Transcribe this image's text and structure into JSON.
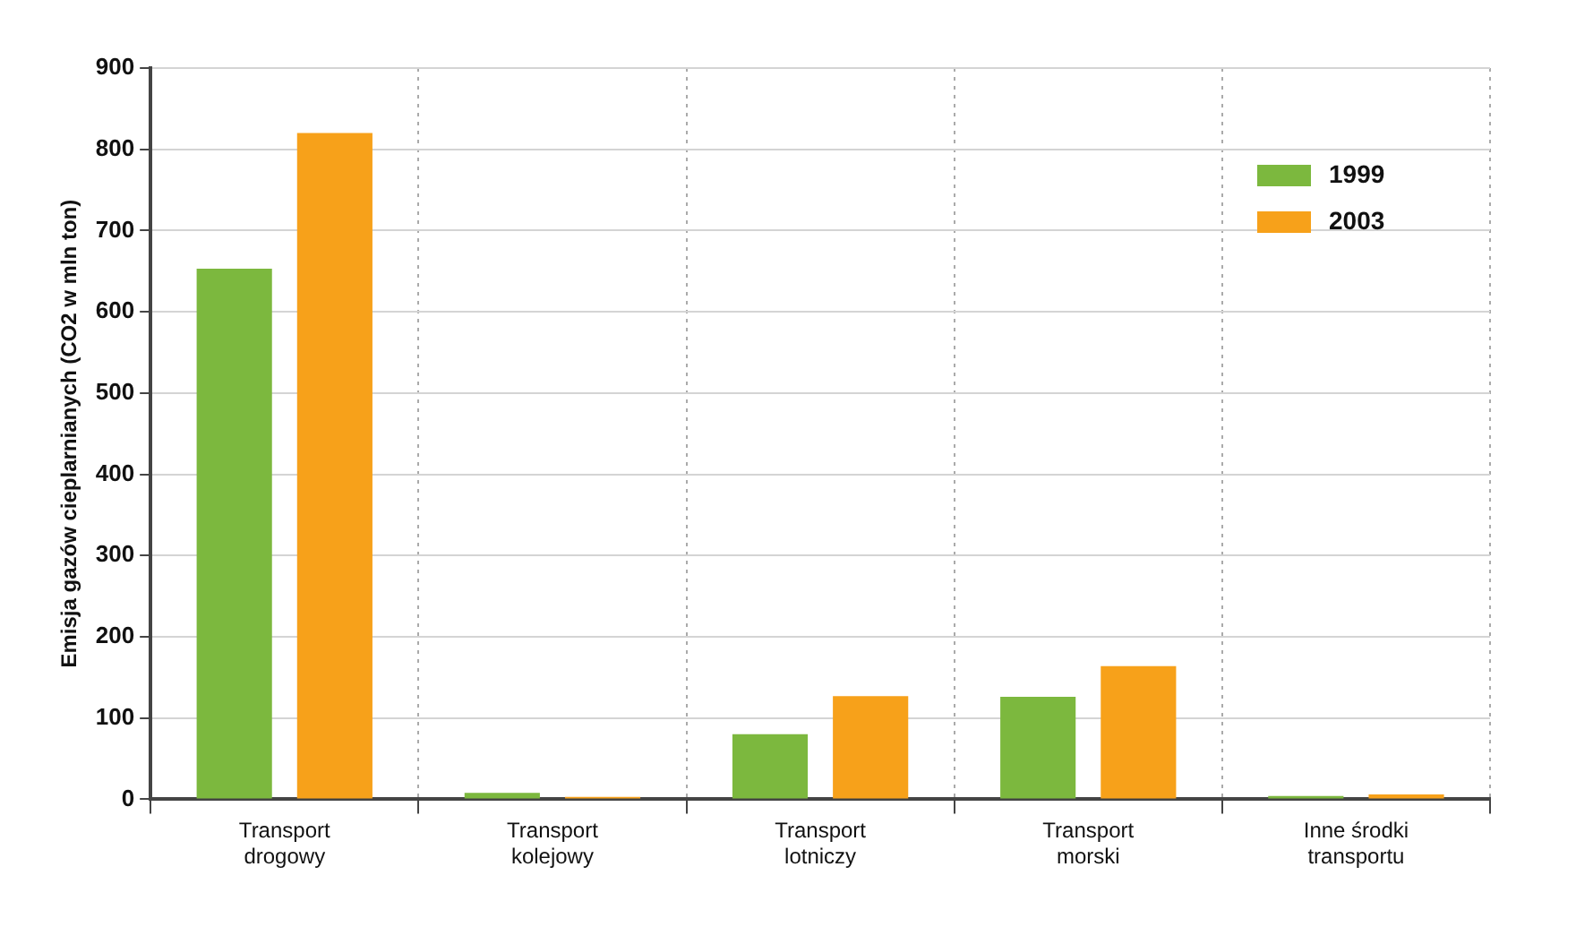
{
  "chart_data": {
    "type": "bar",
    "ylabel": "Emisja gazów cieplarnianych (CO2 w mln ton)",
    "categories": [
      "Transport drogowy",
      "Transport kolejowy",
      "Transport lotniczy",
      "Transport morski",
      "Inne środki transportu"
    ],
    "series": [
      {
        "name": "1999",
        "color": "#7cb83e",
        "values": [
          653,
          8,
          80,
          126,
          4
        ]
      },
      {
        "name": "2003",
        "color": "#f7a11a",
        "values": [
          820,
          3,
          127,
          164,
          6
        ]
      }
    ],
    "ylim": [
      0,
      900
    ],
    "yticks": [
      0,
      100,
      200,
      300,
      400,
      500,
      600,
      700,
      800,
      900
    ],
    "grid": true,
    "legend": "top right"
  }
}
